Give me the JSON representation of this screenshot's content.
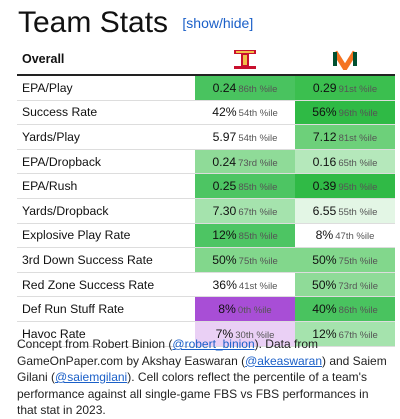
{
  "title": "Team Stats",
  "toggle": {
    "open": "[",
    "label": "show/hide",
    "close": "]"
  },
  "table": {
    "header_label": "Overall",
    "team1_logo": "iowa-state-logo-icon",
    "team2_logo": "miami-logo-icon",
    "rows": [
      {
        "label": "EPA/Play",
        "t1": {
          "v": "0.24",
          "p": "86th %ile",
          "bg": "#49c35f"
        },
        "t2": {
          "v": "0.29",
          "p": "91st %ile",
          "bg": "#3bbf4f"
        }
      },
      {
        "label": "Success Rate",
        "t1": {
          "v": "42%",
          "p": "54th %ile",
          "bg": "#ffffff"
        },
        "t2": {
          "v": "56%",
          "p": "96th %ile",
          "bg": "#2fba45"
        }
      },
      {
        "label": "Yards/Play",
        "t1": {
          "v": "5.97",
          "p": "54th %ile",
          "bg": "#ffffff"
        },
        "t2": {
          "v": "7.12",
          "p": "81st %ile",
          "bg": "#6dd07a"
        }
      },
      {
        "label": "EPA/Dropback",
        "t1": {
          "v": "0.24",
          "p": "73rd %ile",
          "bg": "#8fdb98"
        },
        "t2": {
          "v": "0.16",
          "p": "65th %ile",
          "bg": "#b5e8bb"
        }
      },
      {
        "label": "EPA/Rush",
        "t1": {
          "v": "0.25",
          "p": "85th %ile",
          "bg": "#4dc563"
        },
        "t2": {
          "v": "0.39",
          "p": "95th %ile",
          "bg": "#30ba46"
        }
      },
      {
        "label": "Yards/Dropback",
        "t1": {
          "v": "7.30",
          "p": "67th %ile",
          "bg": "#a5e3ad"
        },
        "t2": {
          "v": "6.55",
          "p": "55th %ile",
          "bg": "#e3f6e5"
        }
      },
      {
        "label": "Explosive Play Rate",
        "t1": {
          "v": "12%",
          "p": "85th %ile",
          "bg": "#4dc563"
        },
        "t2": {
          "v": "8%",
          "p": "47th %ile",
          "bg": "#ffffff"
        }
      },
      {
        "label": "3rd Down Success Rate",
        "t1": {
          "v": "50%",
          "p": "75th %ile",
          "bg": "#82d78c"
        },
        "t2": {
          "v": "50%",
          "p": "75th %ile",
          "bg": "#82d78c"
        }
      },
      {
        "label": "Red Zone Success Rate",
        "t1": {
          "v": "36%",
          "p": "41st %ile",
          "bg": "#ffffff"
        },
        "t2": {
          "v": "50%",
          "p": "73rd %ile",
          "bg": "#8fdb98"
        }
      },
      {
        "label": "Def Run Stuff Rate",
        "t1": {
          "v": "8%",
          "p": "0th %ile",
          "bg": "#a84ed6"
        },
        "t2": {
          "v": "40%",
          "p": "86th %ile",
          "bg": "#49c35f"
        }
      },
      {
        "label": "Havoc Rate",
        "t1": {
          "v": "7%",
          "p": "30th %ile",
          "bg": "#ead0f5"
        },
        "t2": {
          "v": "12%",
          "p": "67th %ile",
          "bg": "#a5e3ad"
        }
      }
    ]
  },
  "footer": {
    "p1": "Concept from Robert Binion (",
    "link1": "@robert_binion",
    "p2": "). Data from GameOnPaper.com by Akshay Easwaran (",
    "link2": "@akeaswaran",
    "p3": ") and Saiem Gilani (",
    "link3": "@saiemgilani",
    "p4": "). Cell colors reflect the percentile of a team's performance against all single-game FBS vs FBS performances in that stat in 2023."
  }
}
